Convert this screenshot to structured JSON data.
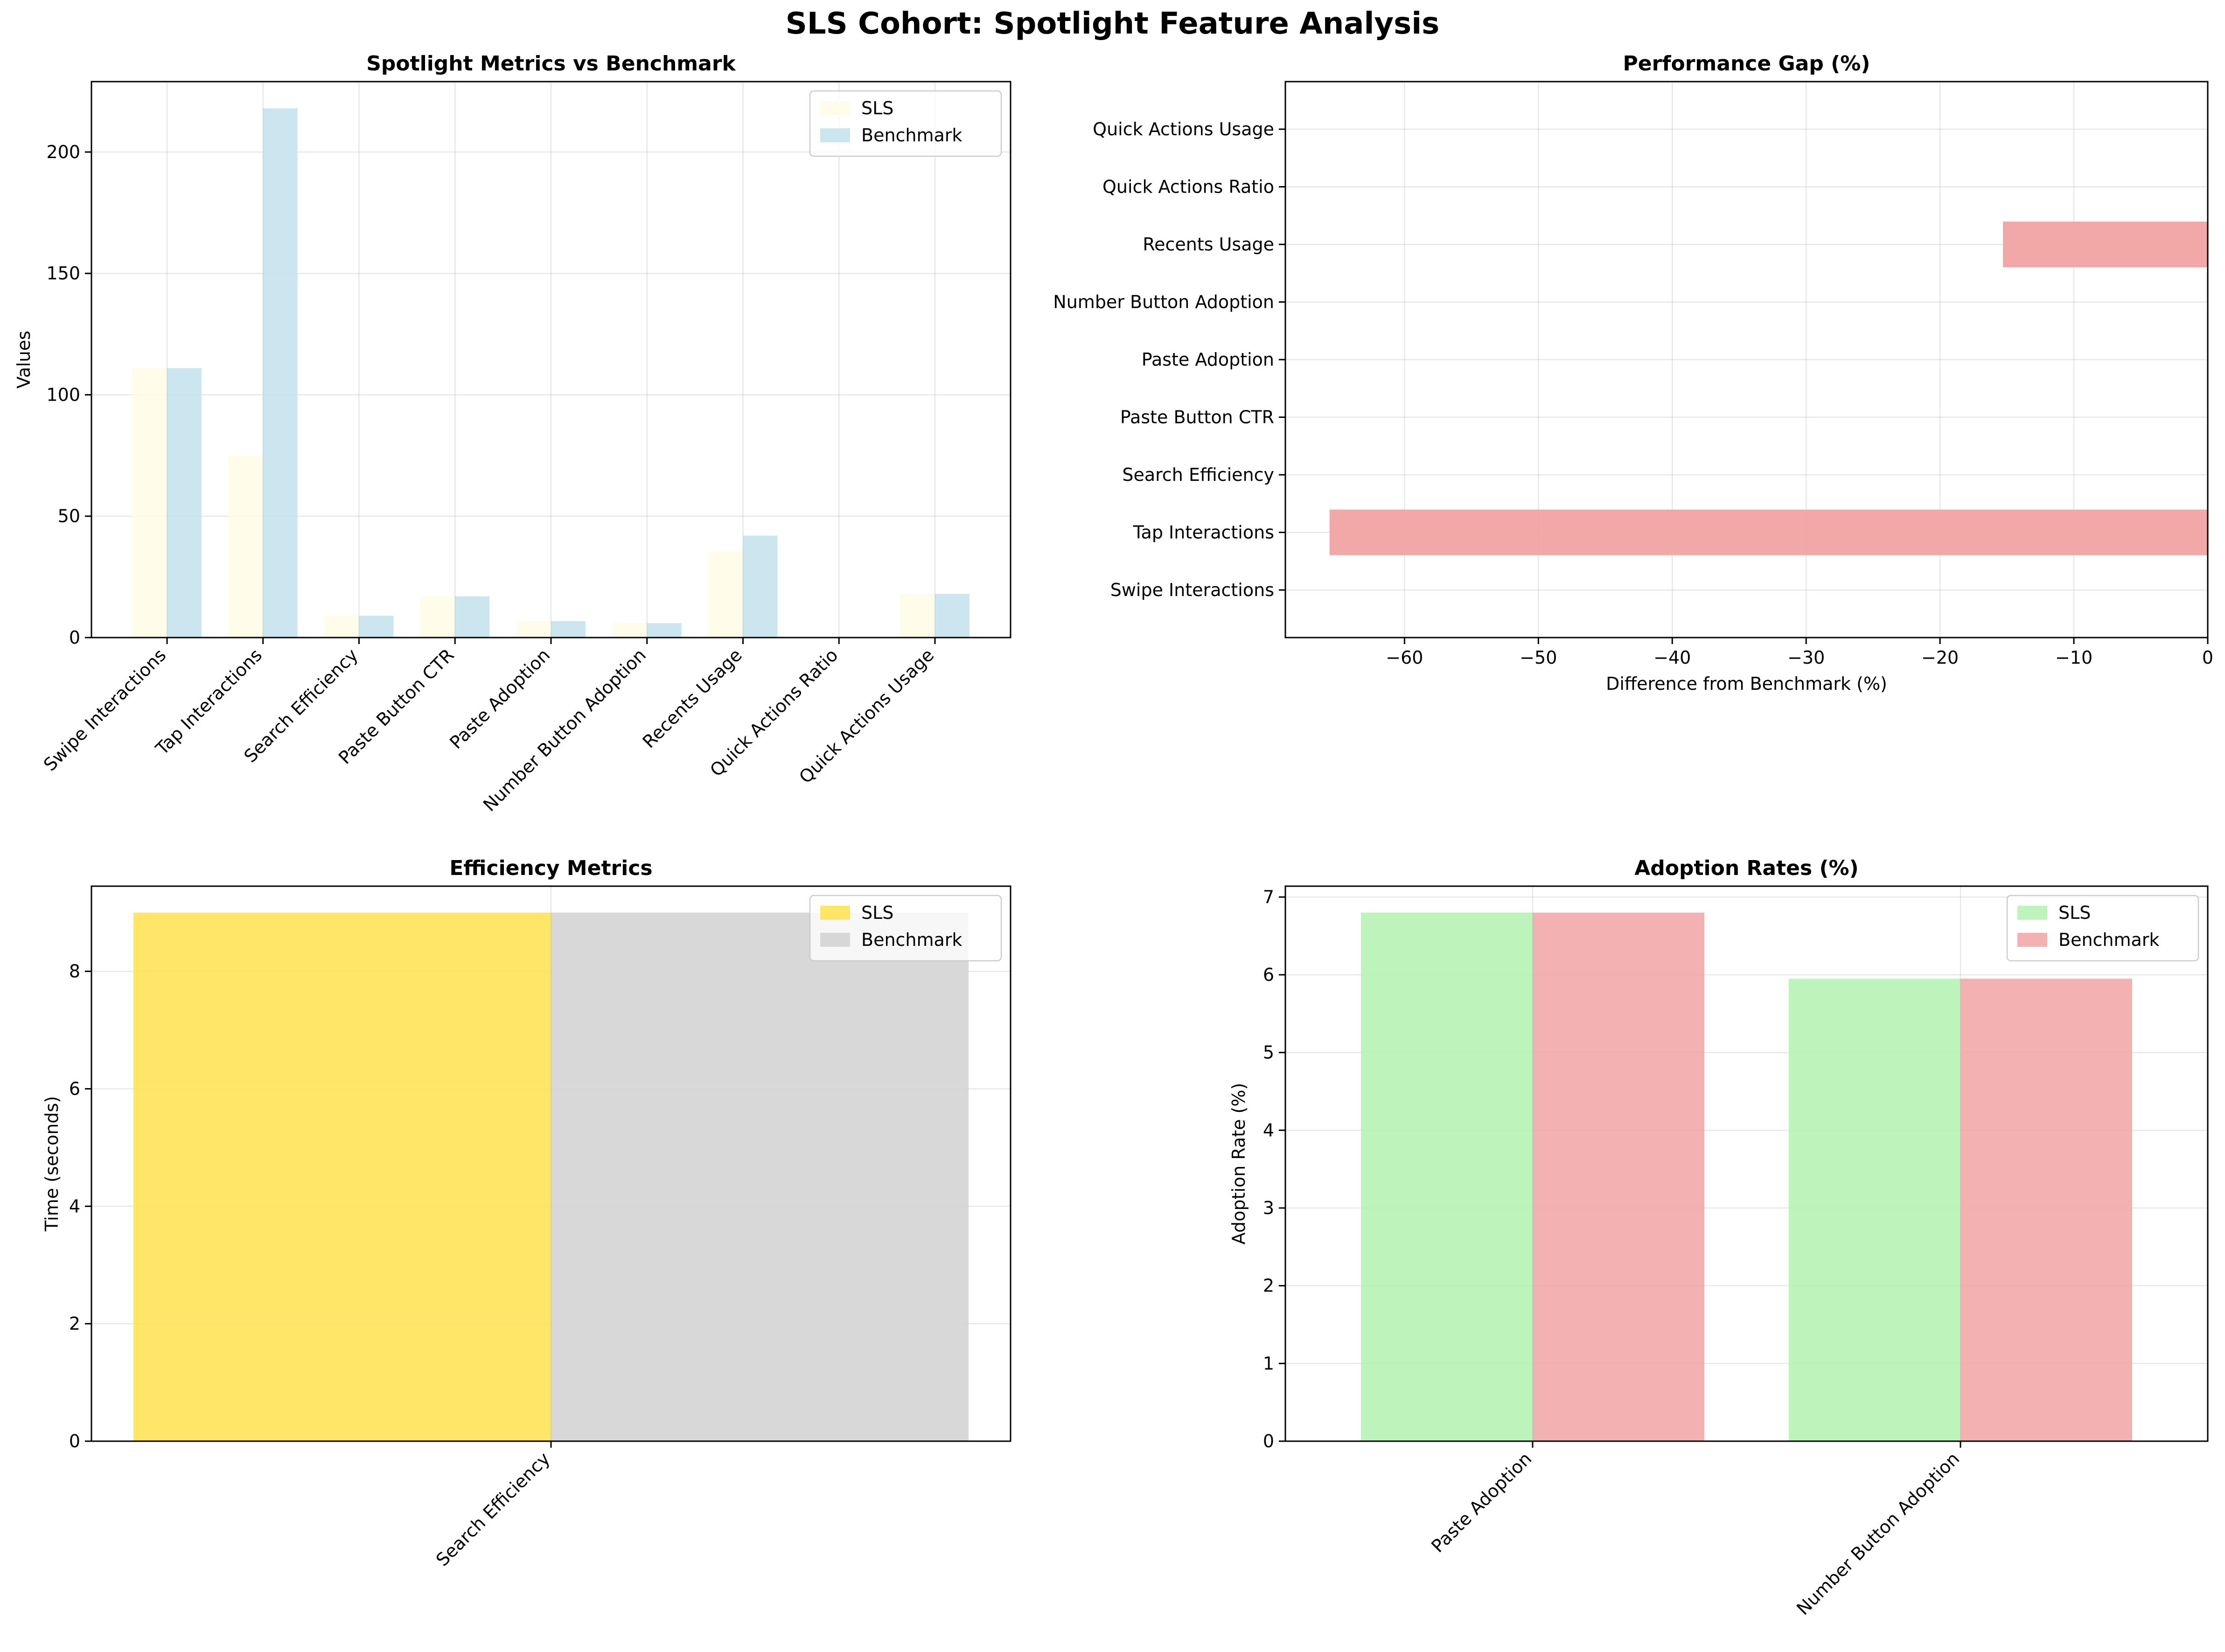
{
  "figure": {
    "title": "SLS  Cohort: Spotlight Feature Analysis"
  },
  "colors": {
    "sls_main": "#fffbe6",
    "benchmark_main": "#c3e2ec",
    "gap_bar": "#f2a3a3",
    "sls_eff": "#ffe04d",
    "benchmark_eff": "#d1d1d1",
    "sls_adopt": "#b2f2b0",
    "benchmark_adopt": "#f2a3a3"
  },
  "chart_data": [
    {
      "id": "main",
      "type": "bar",
      "title": "Spotlight Metrics vs Benchmark",
      "xlabel": "",
      "ylabel": "Values",
      "categories": [
        "Swipe Interactions",
        "Tap Interactions",
        "Search Efficiency",
        "Paste Button CTR",
        "Paste Adoption",
        "Number Button Adoption",
        "Recents Usage",
        "Quick Actions Ratio",
        "Quick Actions Usage"
      ],
      "series": [
        {
          "name": "SLS",
          "values": [
            111,
            75,
            9,
            17,
            6.8,
            5.95,
            35.5,
            0,
            18
          ]
        },
        {
          "name": "Benchmark",
          "values": [
            111,
            218,
            9,
            17,
            6.8,
            5.95,
            42,
            0,
            18
          ]
        }
      ],
      "ylim": [
        0,
        229
      ],
      "yticks": [
        0,
        50,
        100,
        150,
        200
      ],
      "grid": true,
      "legend": "top-right"
    },
    {
      "id": "gap",
      "type": "bar",
      "orientation": "horizontal",
      "title": "Performance Gap (%)",
      "xlabel": "Difference from Benchmark (%)",
      "ylabel": "",
      "categories": [
        "Swipe Interactions",
        "Tap Interactions",
        "Search Efficiency",
        "Paste Button CTR",
        "Paste Adoption",
        "Number Button Adoption",
        "Recents Usage",
        "Quick Actions Ratio",
        "Quick Actions Usage"
      ],
      "values": [
        0,
        -65.6,
        0,
        0,
        0,
        0,
        -15.3,
        0,
        0
      ],
      "xlim": [
        -68.9,
        0
      ],
      "xticks": [
        -60,
        -50,
        -40,
        -30,
        -20,
        -10,
        0
      ],
      "grid": true
    },
    {
      "id": "eff",
      "type": "bar",
      "title": "Efficiency Metrics",
      "xlabel": "",
      "ylabel": "Time (seconds)",
      "categories": [
        "Search Efficiency"
      ],
      "series": [
        {
          "name": "SLS",
          "values": [
            9
          ]
        },
        {
          "name": "Benchmark",
          "values": [
            9
          ]
        }
      ],
      "ylim": [
        0,
        9.45
      ],
      "yticks": [
        0,
        2,
        4,
        6,
        8
      ],
      "grid": true,
      "legend": "top-right"
    },
    {
      "id": "adopt",
      "type": "bar",
      "title": "Adoption Rates (%)",
      "xlabel": "",
      "ylabel": "Adoption Rate (%)",
      "categories": [
        "Paste Adoption",
        "Number Button Adoption"
      ],
      "series": [
        {
          "name": "SLS",
          "values": [
            6.8,
            5.95
          ]
        },
        {
          "name": "Benchmark",
          "values": [
            6.8,
            5.95
          ]
        }
      ],
      "ylim": [
        0,
        7.14
      ],
      "yticks": [
        0,
        1,
        2,
        3,
        4,
        5,
        6,
        7
      ],
      "grid": true,
      "legend": "top-right"
    }
  ]
}
